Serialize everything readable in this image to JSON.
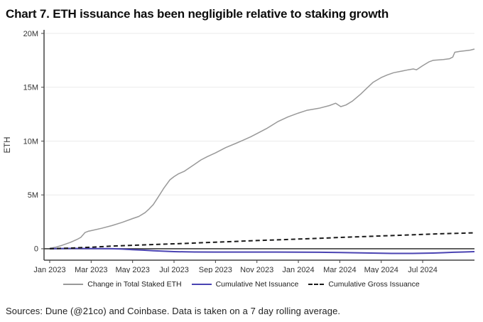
{
  "title": "Chart 7. ETH issuance has been negligible relative to staking growth",
  "footer": "Sources: Dune (@21co) and Coinbase. Data is taken on a 7 day rolling average.",
  "chart_data": {
    "type": "line",
    "title": "Chart 7. ETH issuance has been negligible relative to staking growth",
    "xlabel": "",
    "ylabel": "ETH",
    "units": "ETH (millions)",
    "grid": "horizontal",
    "legend_position": "bottom",
    "x_range": [
      -0.274,
      20.5
    ],
    "y_range": [
      -1.06,
      20.33
    ],
    "grid_color": "#ebebeb",
    "zeroline_color": "#3d3d3d",
    "axis_color": "#444444",
    "tick_label_color": "#333333",
    "x_ticks": [
      {
        "v": 0,
        "label": "Jan 2023"
      },
      {
        "v": 2,
        "label": "Mar 2023"
      },
      {
        "v": 4,
        "label": "May 2023"
      },
      {
        "v": 6,
        "label": "Jul 2023"
      },
      {
        "v": 8,
        "label": "Sep 2023"
      },
      {
        "v": 10,
        "label": "Nov 2023"
      },
      {
        "v": 12,
        "label": "Jan 2024"
      },
      {
        "v": 14,
        "label": "Mar 2024"
      },
      {
        "v": 16,
        "label": "May 2024"
      },
      {
        "v": 18,
        "label": "Jul 2024"
      }
    ],
    "y_ticks": [
      {
        "v": 0,
        "label": "0"
      },
      {
        "v": 5,
        "label": "5M"
      },
      {
        "v": 10,
        "label": "10M"
      },
      {
        "v": 15,
        "label": "15M"
      },
      {
        "v": 20,
        "label": "20M"
      }
    ],
    "series": [
      {
        "name": "Change in Total Staked ETH",
        "color": "#999999",
        "style": "solid",
        "width": 1.5,
        "x": [
          0,
          0.3,
          0.6,
          1.0,
          1.3,
          1.5,
          1.7,
          1.85,
          2.0,
          2.5,
          3.0,
          3.5,
          4.0,
          4.3,
          4.6,
          4.8,
          5.0,
          5.2,
          5.5,
          5.8,
          6.0,
          6.2,
          6.5,
          7.0,
          7.3,
          7.6,
          8.0,
          8.5,
          9.0,
          9.3,
          9.7,
          10.0,
          10.5,
          11.0,
          11.5,
          12.0,
          12.4,
          12.7,
          13.0,
          13.5,
          13.8,
          14.05,
          14.3,
          14.6,
          15.0,
          15.3,
          15.6,
          16.0,
          16.3,
          16.6,
          17.0,
          17.3,
          17.55,
          17.7,
          18.0,
          18.3,
          18.5,
          19.0,
          19.3,
          19.45,
          19.55,
          19.8,
          20.1,
          20.3,
          20.5
        ],
        "y": [
          0.05,
          0.15,
          0.32,
          0.6,
          0.85,
          1.05,
          1.5,
          1.62,
          1.68,
          1.9,
          2.15,
          2.45,
          2.8,
          3.0,
          3.35,
          3.7,
          4.1,
          4.7,
          5.6,
          6.4,
          6.7,
          6.95,
          7.2,
          7.85,
          8.25,
          8.55,
          8.9,
          9.4,
          9.8,
          10.05,
          10.4,
          10.7,
          11.2,
          11.8,
          12.25,
          12.6,
          12.85,
          12.95,
          13.05,
          13.3,
          13.52,
          13.2,
          13.35,
          13.7,
          14.35,
          14.9,
          15.45,
          15.9,
          16.15,
          16.35,
          16.5,
          16.62,
          16.7,
          16.62,
          17.0,
          17.35,
          17.5,
          17.58,
          17.65,
          17.8,
          18.25,
          18.33,
          18.4,
          18.45,
          18.55
        ]
      },
      {
        "name": "Cumulative Net Issuance",
        "color": "#4a43b2",
        "style": "solid",
        "width": 2,
        "x": [
          0,
          1,
          2,
          3,
          3.5,
          4,
          4.5,
          5,
          5.5,
          6,
          6.5,
          7,
          8,
          9,
          10,
          11,
          12,
          13,
          14,
          15,
          15.5,
          16,
          16.5,
          17,
          17.5,
          18,
          18.5,
          19,
          19.5,
          20,
          20.5
        ],
        "y": [
          0,
          0.03,
          0.02,
          0,
          -0.03,
          -0.08,
          -0.13,
          -0.18,
          -0.23,
          -0.27,
          -0.29,
          -0.3,
          -0.31,
          -0.31,
          -0.31,
          -0.31,
          -0.32,
          -0.33,
          -0.35,
          -0.38,
          -0.4,
          -0.42,
          -0.43,
          -0.43,
          -0.43,
          -0.42,
          -0.4,
          -0.37,
          -0.33,
          -0.3,
          -0.27
        ]
      },
      {
        "name": "Cumulative Gross Issuance",
        "color": "#1a1a1a",
        "style": "dashed",
        "width": 2,
        "x": [
          0,
          1,
          2,
          3,
          4,
          5,
          6,
          7,
          8,
          9,
          10,
          11,
          12,
          13,
          14,
          15,
          16,
          17,
          18,
          19,
          20,
          20.5
        ],
        "y": [
          0,
          0.06,
          0.14,
          0.25,
          0.32,
          0.39,
          0.46,
          0.53,
          0.61,
          0.68,
          0.76,
          0.83,
          0.9,
          0.97,
          1.05,
          1.12,
          1.19,
          1.26,
          1.33,
          1.4,
          1.45,
          1.48
        ]
      }
    ]
  }
}
